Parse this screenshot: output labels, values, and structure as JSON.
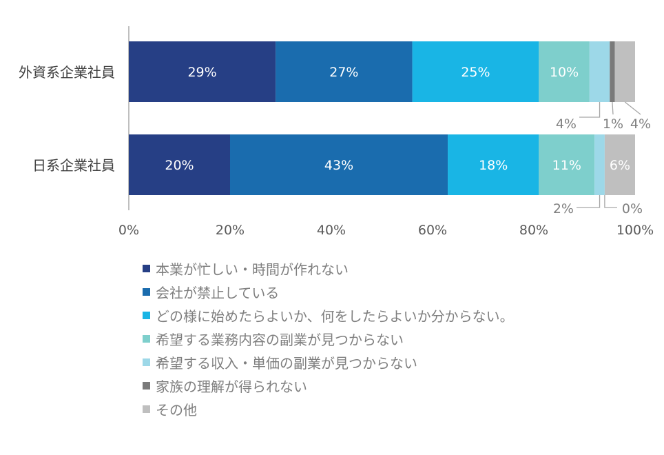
{
  "chart_data": {
    "type": "bar",
    "orientation": "horizontal",
    "stacked": true,
    "categories": [
      "外資系企業社員",
      "日系企業社員"
    ],
    "series": [
      {
        "name": "本業が忙しい・時間が作れない",
        "color": "#263f85",
        "values": [
          29,
          20
        ],
        "labels": [
          "29%",
          "20%"
        ]
      },
      {
        "name": "会社が禁止している",
        "color": "#1a6cae",
        "values": [
          27,
          43
        ],
        "labels": [
          "27%",
          "43%"
        ]
      },
      {
        "name": "どの様に始めたらよいか、何をしたらよいか分からない。",
        "color": "#19b5e5",
        "values": [
          25,
          18
        ],
        "labels": [
          "25%",
          "18%"
        ]
      },
      {
        "name": "希望する業務内容の副業が見つからない",
        "color": "#7ecfcc",
        "values": [
          10,
          11
        ],
        "labels": [
          "10%",
          "11%"
        ]
      },
      {
        "name": "希望する収入・単価の副業が見つからない",
        "color": "#9dd8e8",
        "values": [
          4,
          2
        ],
        "labels": [
          "4%",
          "2%"
        ]
      },
      {
        "name": "家族の理解が得られない",
        "color": "#7a7a7a",
        "values": [
          1,
          0
        ],
        "labels": [
          "1%",
          "0%"
        ]
      },
      {
        "name": "その他",
        "color": "#bfbfbf",
        "values": [
          4,
          6
        ],
        "labels": [
          "4%",
          "6%"
        ]
      }
    ],
    "xlim": [
      0,
      100
    ],
    "x_ticks": [
      "0%",
      "20%",
      "40%",
      "60%",
      "80%",
      "100%"
    ],
    "grid": false,
    "legend_position": "bottom"
  }
}
